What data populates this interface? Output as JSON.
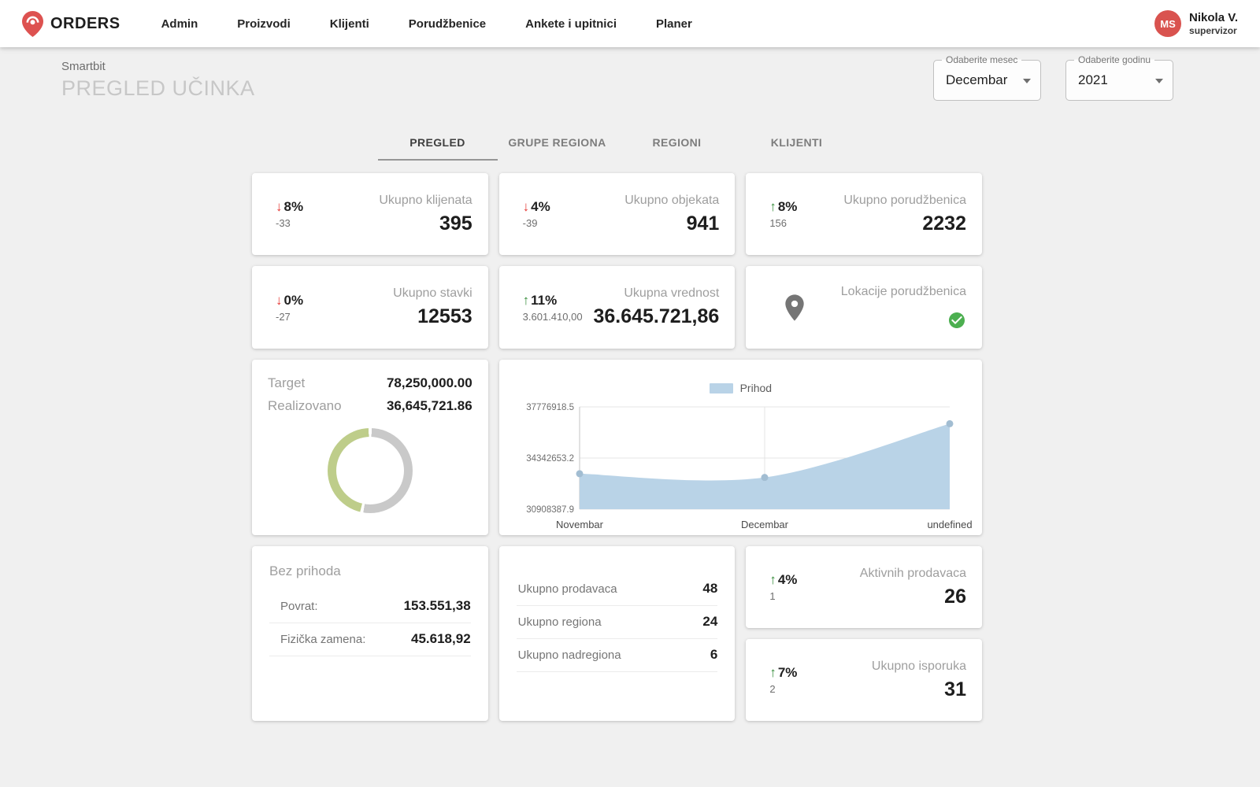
{
  "colors": {
    "accent_red": "#d9534f",
    "trend_up": "#388e3c",
    "trend_down": "#e53935",
    "check_green": "#4caf50",
    "pin_gray": "#757575"
  },
  "nav": {
    "brand": "ORDERS",
    "items": [
      {
        "label": "Admin"
      },
      {
        "label": "Proizvodi"
      },
      {
        "label": "Klijenti"
      },
      {
        "label": "Porudžbenice"
      },
      {
        "label": "Ankete i upitnici"
      },
      {
        "label": "Planer"
      }
    ],
    "user": {
      "initials": "MS",
      "name": "Nikola V.",
      "role": "supervizor"
    }
  },
  "header": {
    "app_name": "Smartbit",
    "page_title": "PREGLED UČINKA",
    "month_select": {
      "label": "Odaberite mesec",
      "value": "Decembar"
    },
    "year_select": {
      "label": "Odaberite godinu",
      "value": "2021"
    }
  },
  "tabs": [
    {
      "label": "PREGLED"
    },
    {
      "label": "GRUPE REGIONA"
    },
    {
      "label": "REGIONI"
    },
    {
      "label": "KLIJENTI"
    }
  ],
  "kpis": [
    {
      "title": "Ukupno klijenata",
      "value": "395",
      "arrow": "↓",
      "percent": "8%",
      "delta": "-33"
    },
    {
      "title": "Ukupno objekata",
      "value": "941",
      "arrow": "↓",
      "percent": "4%",
      "delta": "-39"
    },
    {
      "title": "Ukupno porudžbenica",
      "value": "2232",
      "arrow": "↑",
      "percent": "8%",
      "delta": "156"
    },
    {
      "title": "Ukupno stavki",
      "value": "12553",
      "arrow": "↓",
      "percent": "0%",
      "delta": "-27"
    },
    {
      "title": "Ukupna vrednost",
      "value": "36.645.721,86",
      "arrow": "↑",
      "percent": "11%",
      "delta": "3.601.410,00"
    },
    {
      "title": "Aktivnih prodavaca",
      "value": "26",
      "arrow": "↑",
      "percent": "4%",
      "delta": "1"
    },
    {
      "title": "Ukupno isporuka",
      "value": "31",
      "arrow": "↑",
      "percent": "7%",
      "delta": "2"
    }
  ],
  "location_card": {
    "title": "Lokacije porudžbenica"
  },
  "target_card": {
    "target_label": "Target",
    "target_value": "78,250,000.00",
    "realized_label": "Realizovano",
    "realized_value": "36,645,721.86",
    "percent_realized": 46.83,
    "realized_color": "#becd8a",
    "remaining_color": "#c9c9c9"
  },
  "chart_data": {
    "type": "area",
    "x": [
      "Novembar",
      "Decembar",
      "undefined"
    ],
    "series": [
      {
        "name": "Prihod",
        "values": [
          33290000,
          33040000,
          36645721.86
        ]
      }
    ],
    "ylim": [
      30908387.9,
      37776918.5
    ],
    "yticks": [
      {
        "value": 30908387.9,
        "label": "30908387.9"
      },
      {
        "value": 34342653.2,
        "label": "34342653.2"
      },
      {
        "value": 37776918.5,
        "label": "37776918.5"
      }
    ],
    "legend_position": "top",
    "grid": true,
    "area_color": "#b9d3e7",
    "point_color": "#a2bdd2",
    "axis_color": "#c6c6c6",
    "grid_color": "#e4e4e4"
  },
  "bez_prihoda": {
    "title": "Bez prihoda",
    "rows": [
      {
        "label": "Povrat:",
        "value": "153.551,38"
      },
      {
        "label": "Fizička zamena:",
        "value": "45.618,92"
      }
    ]
  },
  "totals": {
    "rows": [
      {
        "label": "Ukupno prodavaca",
        "value": "48"
      },
      {
        "label": "Ukupno regiona",
        "value": "24"
      },
      {
        "label": "Ukupno nadregiona",
        "value": "6"
      }
    ]
  }
}
